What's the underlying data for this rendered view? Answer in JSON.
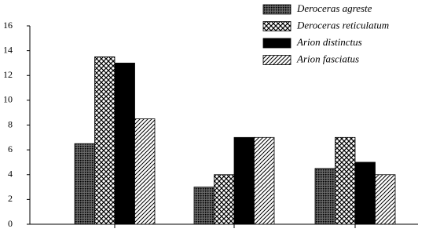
{
  "chart_data": {
    "type": "bar",
    "categories": [
      null,
      null,
      null
    ],
    "series": [
      {
        "name": "Deroceras agreste",
        "color": "#000000",
        "pattern": "dots",
        "values": [
          6.5,
          3,
          4.5
        ]
      },
      {
        "name": "Deroceras reticulatum",
        "color": "#000000",
        "pattern": "crosshatch",
        "values": [
          13.5,
          4,
          7
        ]
      },
      {
        "name": "Arion distinctus",
        "color": "#000000",
        "pattern": "solid",
        "values": [
          13,
          7,
          5
        ]
      },
      {
        "name": "Arion fasciatus",
        "color": "#000000",
        "pattern": "hatch",
        "values": [
          8.5,
          7,
          4
        ]
      }
    ],
    "ylim": [
      0,
      16
    ],
    "yticks": [
      0,
      2,
      4,
      6,
      8,
      10,
      12,
      14,
      16
    ],
    "grid": false,
    "legend": "top-right"
  }
}
